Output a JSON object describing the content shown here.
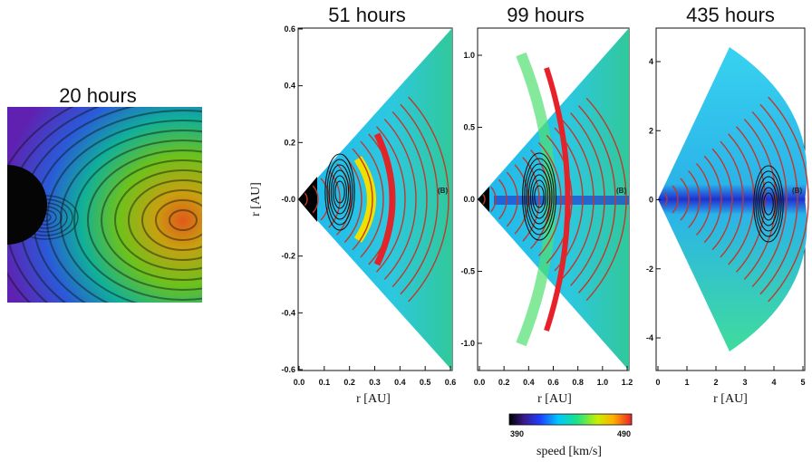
{
  "colors": {
    "contour_red": "#c0392b",
    "contour_black": "#111111",
    "slow": "#3a1a8a",
    "fast": "#e8202a"
  },
  "chart_data": [
    {
      "type": "heatmap",
      "title": "20 hours",
      "note": "ring-shaped contour field around a dark body"
    },
    {
      "type": "heatmap",
      "title": "51 hours",
      "xlabel": "r [AU]",
      "ylabel": "r [AU]",
      "x_ticks": [
        "0.0",
        "0.1",
        "0.2",
        "0.3",
        "0.4",
        "0.5",
        "0.6"
      ],
      "y_ticks": [
        "0.6",
        "0.4",
        "0.2",
        "-0.0",
        "-0.2",
        "-0.4",
        "-0.6"
      ],
      "xlim": [
        0.0,
        0.6
      ],
      "ylim": [
        -0.6,
        0.6
      ],
      "overlay_label": "(B)"
    },
    {
      "type": "heatmap",
      "title": "99 hours",
      "xlabel": "r [AU]",
      "x_ticks": [
        "0.0",
        "0.2",
        "0.4",
        "0.6",
        "0.8",
        "1.0",
        "1.2"
      ],
      "y_ticks": [
        "1.0",
        "0.5",
        "0.0",
        "-0.5",
        "-1.0"
      ],
      "xlim": [
        0.0,
        1.2
      ],
      "ylim": [
        -1.2,
        1.2
      ],
      "overlay_label": "(B)"
    },
    {
      "type": "heatmap",
      "title": "435 hours",
      "xlabel": "r [AU]",
      "x_ticks": [
        "0",
        "1",
        "2",
        "3",
        "4",
        "5"
      ],
      "y_ticks": [
        "4",
        "2",
        "0",
        "-2",
        "-4"
      ],
      "xlim": [
        0,
        5
      ],
      "ylim": [
        -5,
        5
      ],
      "overlay_label": "(B)"
    }
  ],
  "colorbar": {
    "min": "390",
    "max": "490",
    "label": "speed [km/s]"
  }
}
